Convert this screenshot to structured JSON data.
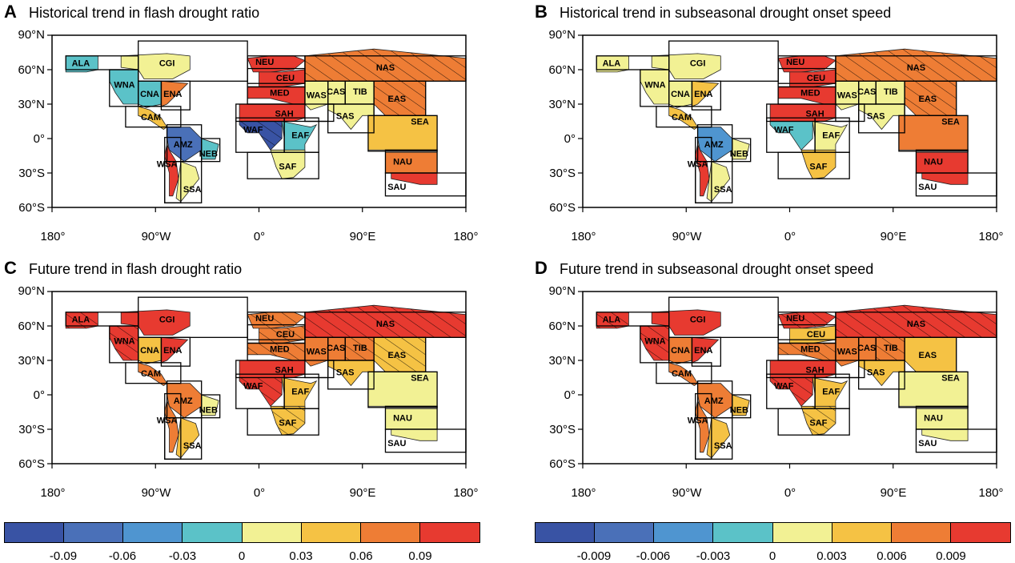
{
  "palette": [
    "#3953a4",
    "#4a70b8",
    "#4f95d0",
    "#5bc2c8",
    "#f2f194",
    "#f5c244",
    "#ee7d35",
    "#e73a30"
  ],
  "panels": [
    {
      "letter": "A",
      "title": "Historical trend in flash drought ratio",
      "lat_labels": [
        "90°N",
        "60°N",
        "30°N",
        "0°",
        "30°S",
        "60°S"
      ],
      "lon_labels": [
        "180°",
        "90°W",
        "0°",
        "90°E",
        "180°"
      ],
      "regions": [
        {
          "name": "ALA",
          "bin": 3,
          "hatch": false
        },
        {
          "name": "CGI",
          "bin": 4,
          "hatch": false
        },
        {
          "name": "WNA",
          "bin": 3,
          "hatch": false
        },
        {
          "name": "CNA",
          "bin": 3,
          "hatch": false
        },
        {
          "name": "ENA",
          "bin": 6,
          "hatch": false
        },
        {
          "name": "CAM",
          "bin": 5,
          "hatch": false
        },
        {
          "name": "AMZ",
          "bin": 1,
          "hatch": false
        },
        {
          "name": "NEB",
          "bin": 3,
          "hatch": false
        },
        {
          "name": "WSA",
          "bin": 7,
          "hatch": false
        },
        {
          "name": "SSA",
          "bin": 4,
          "hatch": false
        },
        {
          "name": "NEU",
          "bin": 7,
          "hatch": false
        },
        {
          "name": "CEU",
          "bin": 7,
          "hatch": false
        },
        {
          "name": "MED",
          "bin": 7,
          "hatch": false
        },
        {
          "name": "SAH",
          "bin": 7,
          "hatch": false
        },
        {
          "name": "WAF",
          "bin": 0,
          "hatch": true
        },
        {
          "name": "EAF",
          "bin": 3,
          "hatch": false
        },
        {
          "name": "SAF",
          "bin": 4,
          "hatch": false
        },
        {
          "name": "NAS",
          "bin": 6,
          "hatch": true
        },
        {
          "name": "WAS",
          "bin": 4,
          "hatch": false
        },
        {
          "name": "CAS",
          "bin": 4,
          "hatch": false
        },
        {
          "name": "TIB",
          "bin": 4,
          "hatch": false
        },
        {
          "name": "EAS",
          "bin": 6,
          "hatch": true
        },
        {
          "name": "SAS",
          "bin": 4,
          "hatch": false
        },
        {
          "name": "SEA",
          "bin": 5,
          "hatch": false
        },
        {
          "name": "NAU",
          "bin": 6,
          "hatch": false
        },
        {
          "name": "SAU",
          "bin": 7,
          "hatch": false
        }
      ]
    },
    {
      "letter": "B",
      "title": "Historical trend in subseasonal drought onset speed",
      "lat_labels": [
        "90°N",
        "60°N",
        "30°N",
        "0°",
        "30°S",
        "60°S"
      ],
      "lon_labels": [
        "180°",
        "90°W",
        "0°",
        "90°E",
        "180°"
      ],
      "regions": [
        {
          "name": "ALA",
          "bin": 4,
          "hatch": false
        },
        {
          "name": "CGI",
          "bin": 4,
          "hatch": false
        },
        {
          "name": "WNA",
          "bin": 4,
          "hatch": false
        },
        {
          "name": "CNA",
          "bin": 4,
          "hatch": false
        },
        {
          "name": "ENA",
          "bin": 5,
          "hatch": false
        },
        {
          "name": "CAM",
          "bin": 5,
          "hatch": false
        },
        {
          "name": "AMZ",
          "bin": 2,
          "hatch": false
        },
        {
          "name": "NEB",
          "bin": 4,
          "hatch": false
        },
        {
          "name": "WSA",
          "bin": 7,
          "hatch": false
        },
        {
          "name": "SSA",
          "bin": 4,
          "hatch": false
        },
        {
          "name": "NEU",
          "bin": 7,
          "hatch": false
        },
        {
          "name": "CEU",
          "bin": 7,
          "hatch": false
        },
        {
          "name": "MED",
          "bin": 7,
          "hatch": false
        },
        {
          "name": "SAH",
          "bin": 7,
          "hatch": false
        },
        {
          "name": "WAF",
          "bin": 3,
          "hatch": false
        },
        {
          "name": "EAF",
          "bin": 4,
          "hatch": false
        },
        {
          "name": "SAF",
          "bin": 5,
          "hatch": false
        },
        {
          "name": "NAS",
          "bin": 6,
          "hatch": true
        },
        {
          "name": "WAS",
          "bin": 4,
          "hatch": false
        },
        {
          "name": "CAS",
          "bin": 4,
          "hatch": false
        },
        {
          "name": "TIB",
          "bin": 4,
          "hatch": false
        },
        {
          "name": "EAS",
          "bin": 6,
          "hatch": true
        },
        {
          "name": "SAS",
          "bin": 4,
          "hatch": false
        },
        {
          "name": "SEA",
          "bin": 6,
          "hatch": false
        },
        {
          "name": "NAU",
          "bin": 7,
          "hatch": false
        },
        {
          "name": "SAU",
          "bin": 7,
          "hatch": false
        }
      ]
    },
    {
      "letter": "C",
      "title": "Future trend in flash drought ratio",
      "lat_labels": [
        "90°N",
        "60°N",
        "30°N",
        "0°",
        "30°S",
        "60°S"
      ],
      "lon_labels": [
        "180°",
        "90°W",
        "0°",
        "90°E",
        "180°"
      ],
      "regions": [
        {
          "name": "ALA",
          "bin": 7,
          "hatch": true
        },
        {
          "name": "CGI",
          "bin": 7,
          "hatch": false
        },
        {
          "name": "WNA",
          "bin": 7,
          "hatch": true
        },
        {
          "name": "CNA",
          "bin": 5,
          "hatch": false
        },
        {
          "name": "ENA",
          "bin": 7,
          "hatch": false
        },
        {
          "name": "CAM",
          "bin": 6,
          "hatch": false
        },
        {
          "name": "AMZ",
          "bin": 6,
          "hatch": false
        },
        {
          "name": "NEB",
          "bin": 4,
          "hatch": false
        },
        {
          "name": "WSA",
          "bin": 6,
          "hatch": false
        },
        {
          "name": "SSA",
          "bin": 5,
          "hatch": false
        },
        {
          "name": "NEU",
          "bin": 6,
          "hatch": true
        },
        {
          "name": "CEU",
          "bin": 6,
          "hatch": true
        },
        {
          "name": "MED",
          "bin": 6,
          "hatch": true
        },
        {
          "name": "SAH",
          "bin": 7,
          "hatch": false
        },
        {
          "name": "WAF",
          "bin": 7,
          "hatch": true
        },
        {
          "name": "EAF",
          "bin": 5,
          "hatch": false
        },
        {
          "name": "SAF",
          "bin": 5,
          "hatch": true
        },
        {
          "name": "NAS",
          "bin": 7,
          "hatch": true
        },
        {
          "name": "WAS",
          "bin": 6,
          "hatch": false
        },
        {
          "name": "CAS",
          "bin": 6,
          "hatch": false
        },
        {
          "name": "TIB",
          "bin": 6,
          "hatch": true
        },
        {
          "name": "EAS",
          "bin": 5,
          "hatch": true
        },
        {
          "name": "SAS",
          "bin": 5,
          "hatch": false
        },
        {
          "name": "SEA",
          "bin": 4,
          "hatch": false
        },
        {
          "name": "NAU",
          "bin": 4,
          "hatch": false
        },
        {
          "name": "SAU",
          "bin": 4,
          "hatch": false
        }
      ]
    },
    {
      "letter": "D",
      "title": "Future trend in subseasonal drought onset speed",
      "lat_labels": [
        "90°N",
        "60°N",
        "30°N",
        "0°",
        "30°S",
        "60°S"
      ],
      "lon_labels": [
        "180°",
        "90°W",
        "0°",
        "90°E",
        "180°"
      ],
      "regions": [
        {
          "name": "ALA",
          "bin": 7,
          "hatch": true
        },
        {
          "name": "CGI",
          "bin": 7,
          "hatch": false
        },
        {
          "name": "WNA",
          "bin": 7,
          "hatch": true
        },
        {
          "name": "CNA",
          "bin": 6,
          "hatch": false
        },
        {
          "name": "ENA",
          "bin": 7,
          "hatch": false
        },
        {
          "name": "CAM",
          "bin": 6,
          "hatch": false
        },
        {
          "name": "AMZ",
          "bin": 6,
          "hatch": false
        },
        {
          "name": "NEB",
          "bin": 5,
          "hatch": false
        },
        {
          "name": "WSA",
          "bin": 6,
          "hatch": false
        },
        {
          "name": "SSA",
          "bin": 5,
          "hatch": false
        },
        {
          "name": "NEU",
          "bin": 7,
          "hatch": true
        },
        {
          "name": "CEU",
          "bin": 5,
          "hatch": false
        },
        {
          "name": "MED",
          "bin": 6,
          "hatch": true
        },
        {
          "name": "SAH",
          "bin": 7,
          "hatch": false
        },
        {
          "name": "WAF",
          "bin": 7,
          "hatch": true
        },
        {
          "name": "EAF",
          "bin": 5,
          "hatch": false
        },
        {
          "name": "SAF",
          "bin": 5,
          "hatch": true
        },
        {
          "name": "NAS",
          "bin": 7,
          "hatch": true
        },
        {
          "name": "WAS",
          "bin": 6,
          "hatch": false
        },
        {
          "name": "CAS",
          "bin": 6,
          "hatch": false
        },
        {
          "name": "TIB",
          "bin": 6,
          "hatch": true
        },
        {
          "name": "EAS",
          "bin": 5,
          "hatch": false
        },
        {
          "name": "SAS",
          "bin": 5,
          "hatch": false
        },
        {
          "name": "SEA",
          "bin": 4,
          "hatch": false
        },
        {
          "name": "NAU",
          "bin": 4,
          "hatch": false
        },
        {
          "name": "SAU",
          "bin": 4,
          "hatch": false
        }
      ]
    }
  ],
  "colorbars": [
    {
      "ticks": [
        "-0.09",
        "-0.06",
        "-0.03",
        "0",
        "0.03",
        "0.06",
        "0.09"
      ]
    },
    {
      "ticks": [
        "-0.009",
        "-0.006",
        "-0.003",
        "0",
        "0.003",
        "0.006",
        "0.009"
      ]
    }
  ]
}
